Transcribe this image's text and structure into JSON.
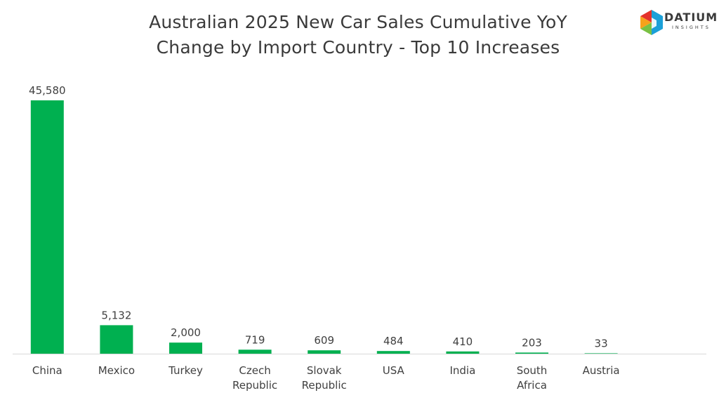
{
  "title_line1": "Australian 2025 New Car Sales Cumulative YoY",
  "title_line2": "Change by Import Country - Top 10 Increases",
  "logo": {
    "word": "DATIUM",
    "sub": "INSIGHTS",
    "icon": "datium-hexagon-logo-icon",
    "colors": [
      "#e4312b",
      "#f7a21b",
      "#7ac143",
      "#1ba0d8"
    ]
  },
  "chart_data": {
    "type": "bar",
    "title": "Australian 2025 New Car Sales Cumulative YoY Change by Import Country - Top 10 Increases",
    "categories": [
      [
        "China"
      ],
      [
        "Mexico"
      ],
      [
        "Turkey"
      ],
      [
        "Czech",
        "Republic"
      ],
      [
        "Slovak",
        "Republic"
      ],
      [
        "USA"
      ],
      [
        "India"
      ],
      [
        "South",
        "Africa"
      ],
      [
        "Austria"
      ]
    ],
    "values": [
      45580,
      5132,
      2000,
      719,
      609,
      484,
      410,
      203,
      33
    ],
    "value_labels": [
      "45,580",
      "5,132",
      "2,000",
      "719",
      "609",
      "484",
      "410",
      "203",
      "33"
    ],
    "ylim": [
      0,
      45580
    ],
    "bar_color": "#00b050",
    "grid": false,
    "legend": "none"
  }
}
